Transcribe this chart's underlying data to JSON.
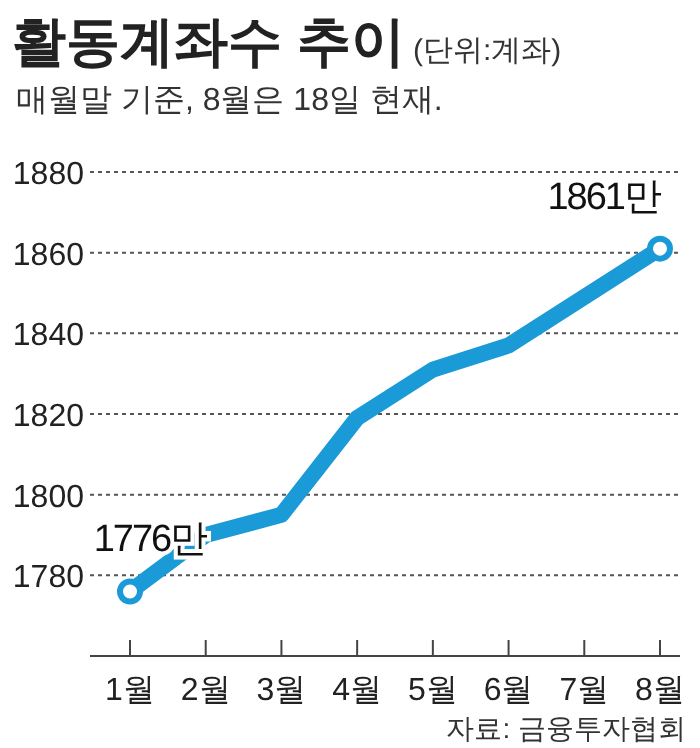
{
  "chart_data": {
    "type": "line",
    "title": "활동계좌수 추이",
    "subtitle": "(단위:계좌)",
    "annotations": [
      "매월말 기준, 8월은 18일 현재.",
      "자료: 금융투자협회"
    ],
    "categories": [
      "1월",
      "2월",
      "3월",
      "4월",
      "5월",
      "6월",
      "7월",
      "8월"
    ],
    "series": [
      {
        "color": "#1a9ad6",
        "values": [
          1776,
          1790,
          1795,
          1819,
          1831,
          1837,
          1849,
          1861
        ],
        "value_labels": [
          "1776만",
          null,
          null,
          null,
          null,
          null,
          null,
          "1861만"
        ]
      }
    ],
    "ylim": [
      1760,
      1880
    ],
    "yticks": [
      1780,
      1800,
      1820,
      1840,
      1860,
      1880
    ],
    "grid": "y",
    "line_style": "solid"
  }
}
